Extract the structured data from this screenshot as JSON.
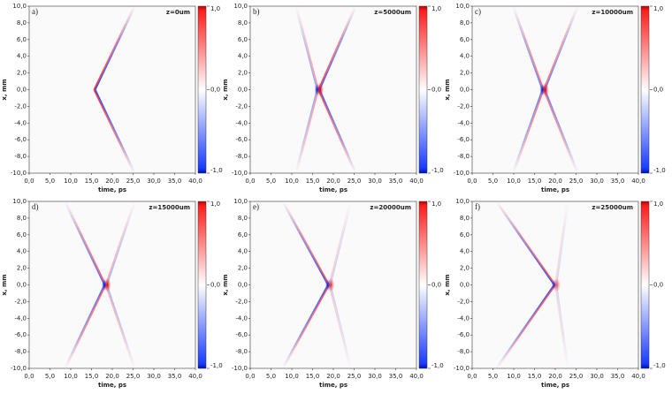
{
  "chart_data": [
    {
      "type": "heatmap",
      "panel_label": "a)",
      "annotation": "z=0um",
      "x_label": "time, ps",
      "y_label": "x, mm",
      "xlim": [
        0,
        40
      ],
      "ylim": [
        -10,
        10
      ],
      "xticks": [
        {
          "value": 0,
          "label": "0,0"
        },
        {
          "value": 5,
          "label": "5,0"
        },
        {
          "value": 10,
          "label": "10,0"
        },
        {
          "value": 15,
          "label": "15,0"
        },
        {
          "value": 20,
          "label": "20,0"
        },
        {
          "value": 25,
          "label": "25,0"
        },
        {
          "value": 30,
          "label": "30,0"
        },
        {
          "value": 35,
          "label": "35,0"
        },
        {
          "value": 40,
          "label": "40,0"
        }
      ],
      "yticks": [
        {
          "value": -10,
          "label": "-10,0"
        },
        {
          "value": -8,
          "label": "-8,0"
        },
        {
          "value": -6,
          "label": "-6,0"
        },
        {
          "value": -4,
          "label": "-4,0"
        },
        {
          "value": -2,
          "label": "-2,0"
        },
        {
          "value": 0,
          "label": "0,0"
        },
        {
          "value": 2,
          "label": "2,0"
        },
        {
          "value": 4,
          "label": "4,0"
        },
        {
          "value": 6,
          "label": "6,0"
        },
        {
          "value": 8,
          "label": "8,0"
        },
        {
          "value": 10,
          "label": "10,0"
        }
      ],
      "colorbar_lim": [
        -1,
        1
      ],
      "colorbar_ticks": [
        {
          "value": 1,
          "label": "1,0"
        },
        {
          "value": 0,
          "label": "0,0"
        },
        {
          "value": -1,
          "label": "-1,0"
        }
      ]
    },
    {
      "type": "heatmap",
      "panel_label": "b)",
      "annotation": "z=5000um",
      "x_label": "time, ps",
      "y_label": "x, mm",
      "xlim": [
        0,
        40
      ],
      "ylim": [
        -10,
        10
      ],
      "xticks": [
        {
          "value": 0,
          "label": "0,0"
        },
        {
          "value": 5,
          "label": "5,0"
        },
        {
          "value": 10,
          "label": "10,0"
        },
        {
          "value": 15,
          "label": "15,0"
        },
        {
          "value": 20,
          "label": "20,0"
        },
        {
          "value": 25,
          "label": "25,0"
        },
        {
          "value": 30,
          "label": "30,0"
        },
        {
          "value": 35,
          "label": "35,0"
        },
        {
          "value": 40,
          "label": "40,0"
        }
      ],
      "yticks": [
        {
          "value": -10,
          "label": "-10,0"
        },
        {
          "value": -8,
          "label": "-8,0"
        },
        {
          "value": -6,
          "label": "-6,0"
        },
        {
          "value": -4,
          "label": "-4,0"
        },
        {
          "value": -2,
          "label": "-2,0"
        },
        {
          "value": 0,
          "label": "0,0"
        },
        {
          "value": 2,
          "label": "2,0"
        },
        {
          "value": 4,
          "label": "4,0"
        },
        {
          "value": 6,
          "label": "6,0"
        },
        {
          "value": 8,
          "label": "8,0"
        },
        {
          "value": 10,
          "label": "10,0"
        }
      ],
      "colorbar_lim": [
        -1,
        1
      ],
      "colorbar_ticks": [
        {
          "value": 1,
          "label": "1,0"
        },
        {
          "value": 0,
          "label": "0,0"
        },
        {
          "value": -1,
          "label": "-1,0"
        }
      ]
    },
    {
      "type": "heatmap",
      "panel_label": "c)",
      "annotation": "z=10000um",
      "x_label": "time, ps",
      "y_label": "x, mm",
      "xlim": [
        0,
        40
      ],
      "ylim": [
        -10,
        10
      ],
      "xticks": [
        {
          "value": 0,
          "label": "0,0"
        },
        {
          "value": 5,
          "label": "5,0"
        },
        {
          "value": 10,
          "label": "10,0"
        },
        {
          "value": 15,
          "label": "15,0"
        },
        {
          "value": 20,
          "label": "20,0"
        },
        {
          "value": 25,
          "label": "25,0"
        },
        {
          "value": 30,
          "label": "30,0"
        },
        {
          "value": 35,
          "label": "35,0"
        },
        {
          "value": 40,
          "label": "40,0"
        }
      ],
      "yticks": [
        {
          "value": -10,
          "label": "-10,0"
        },
        {
          "value": -8,
          "label": "-8,0"
        },
        {
          "value": -6,
          "label": "-6,0"
        },
        {
          "value": -4,
          "label": "-4,0"
        },
        {
          "value": -2,
          "label": "-2,0"
        },
        {
          "value": 0,
          "label": "0,0"
        },
        {
          "value": 2,
          "label": "2,0"
        },
        {
          "value": 4,
          "label": "4,0"
        },
        {
          "value": 6,
          "label": "6,0"
        },
        {
          "value": 8,
          "label": "8,0"
        },
        {
          "value": 10,
          "label": "10,0"
        }
      ],
      "colorbar_lim": [
        -1,
        1
      ],
      "colorbar_ticks": [
        {
          "value": 1,
          "label": "1,0"
        },
        {
          "value": 0,
          "label": "0,0"
        },
        {
          "value": -1,
          "label": "-1,0"
        }
      ]
    },
    {
      "type": "heatmap",
      "panel_label": "d)",
      "annotation": "z=15000um",
      "x_label": "time, ps",
      "y_label": "x, mm",
      "xlim": [
        0,
        40
      ],
      "ylim": [
        -10,
        10
      ],
      "xticks": [
        {
          "value": 0,
          "label": "0,0"
        },
        {
          "value": 5,
          "label": "5,0"
        },
        {
          "value": 10,
          "label": "10,0"
        },
        {
          "value": 15,
          "label": "15,0"
        },
        {
          "value": 20,
          "label": "20,0"
        },
        {
          "value": 25,
          "label": "25,0"
        },
        {
          "value": 30,
          "label": "30,0"
        },
        {
          "value": 35,
          "label": "35,0"
        },
        {
          "value": 40,
          "label": "40,0"
        }
      ],
      "yticks": [
        {
          "value": -10,
          "label": "-10,0"
        },
        {
          "value": -8,
          "label": "-8,0"
        },
        {
          "value": -6,
          "label": "-6,0"
        },
        {
          "value": -4,
          "label": "-4,0"
        },
        {
          "value": -2,
          "label": "-2,0"
        },
        {
          "value": 0,
          "label": "0,0"
        },
        {
          "value": 2,
          "label": "2,0"
        },
        {
          "value": 4,
          "label": "4,0"
        },
        {
          "value": 6,
          "label": "6,0"
        },
        {
          "value": 8,
          "label": "8,0"
        },
        {
          "value": 10,
          "label": "10,0"
        }
      ],
      "colorbar_lim": [
        -1,
        1
      ],
      "colorbar_ticks": [
        {
          "value": 1,
          "label": "1,0"
        },
        {
          "value": 0,
          "label": "0,0"
        },
        {
          "value": -1,
          "label": "-1,0"
        }
      ]
    },
    {
      "type": "heatmap",
      "panel_label": "e)",
      "annotation": "z=20000um",
      "x_label": "time, ps",
      "y_label": "x, mm",
      "xlim": [
        0,
        40
      ],
      "ylim": [
        -10,
        10
      ],
      "xticks": [
        {
          "value": 0,
          "label": "0,0"
        },
        {
          "value": 5,
          "label": "5,0"
        },
        {
          "value": 10,
          "label": "10,0"
        },
        {
          "value": 15,
          "label": "15,0"
        },
        {
          "value": 20,
          "label": "20,0"
        },
        {
          "value": 25,
          "label": "25,0"
        },
        {
          "value": 30,
          "label": "30,0"
        },
        {
          "value": 35,
          "label": "35,0"
        },
        {
          "value": 40,
          "label": "40,0"
        }
      ],
      "yticks": [
        {
          "value": -10,
          "label": "-10,0"
        },
        {
          "value": -8,
          "label": "-8,0"
        },
        {
          "value": -6,
          "label": "-6,0"
        },
        {
          "value": -4,
          "label": "-4,0"
        },
        {
          "value": -2,
          "label": "-2,0"
        },
        {
          "value": 0,
          "label": "0,0"
        },
        {
          "value": 2,
          "label": "2,0"
        },
        {
          "value": 4,
          "label": "4,0"
        },
        {
          "value": 6,
          "label": "6,0"
        },
        {
          "value": 8,
          "label": "8,0"
        },
        {
          "value": 10,
          "label": "10,0"
        }
      ],
      "colorbar_lim": [
        -1,
        1
      ],
      "colorbar_ticks": [
        {
          "value": 1,
          "label": "1,0"
        },
        {
          "value": 0,
          "label": "0,0"
        },
        {
          "value": -1,
          "label": "-1,0"
        }
      ]
    },
    {
      "type": "heatmap",
      "panel_label": "f)",
      "annotation": "z=25000um",
      "x_label": "time, ps",
      "y_label": "x, mm",
      "xlim": [
        0,
        40
      ],
      "ylim": [
        -10,
        10
      ],
      "xticks": [
        {
          "value": 0,
          "label": "0,0"
        },
        {
          "value": 5,
          "label": "5,0"
        },
        {
          "value": 10,
          "label": "10,0"
        },
        {
          "value": 15,
          "label": "15,0"
        },
        {
          "value": 20,
          "label": "20,0"
        },
        {
          "value": 25,
          "label": "25,0"
        },
        {
          "value": 30,
          "label": "30,0"
        },
        {
          "value": 35,
          "label": "35,0"
        },
        {
          "value": 40,
          "label": "40,0"
        }
      ],
      "yticks": [
        {
          "value": -10,
          "label": "-10,0"
        },
        {
          "value": -8,
          "label": "-8,0"
        },
        {
          "value": -6,
          "label": "-6,0"
        },
        {
          "value": -4,
          "label": "-4,0"
        },
        {
          "value": -2,
          "label": "-2,0"
        },
        {
          "value": 0,
          "label": "0,0"
        },
        {
          "value": 2,
          "label": "2,0"
        },
        {
          "value": 4,
          "label": "4,0"
        },
        {
          "value": 6,
          "label": "6,0"
        },
        {
          "value": 8,
          "label": "8,0"
        },
        {
          "value": 10,
          "label": "10,0"
        }
      ],
      "colorbar_lim": [
        -1,
        1
      ],
      "colorbar_ticks": [
        {
          "value": 1,
          "label": "1,0"
        },
        {
          "value": 0,
          "label": "0,0"
        },
        {
          "value": -1,
          "label": "-1,0"
        }
      ]
    }
  ]
}
